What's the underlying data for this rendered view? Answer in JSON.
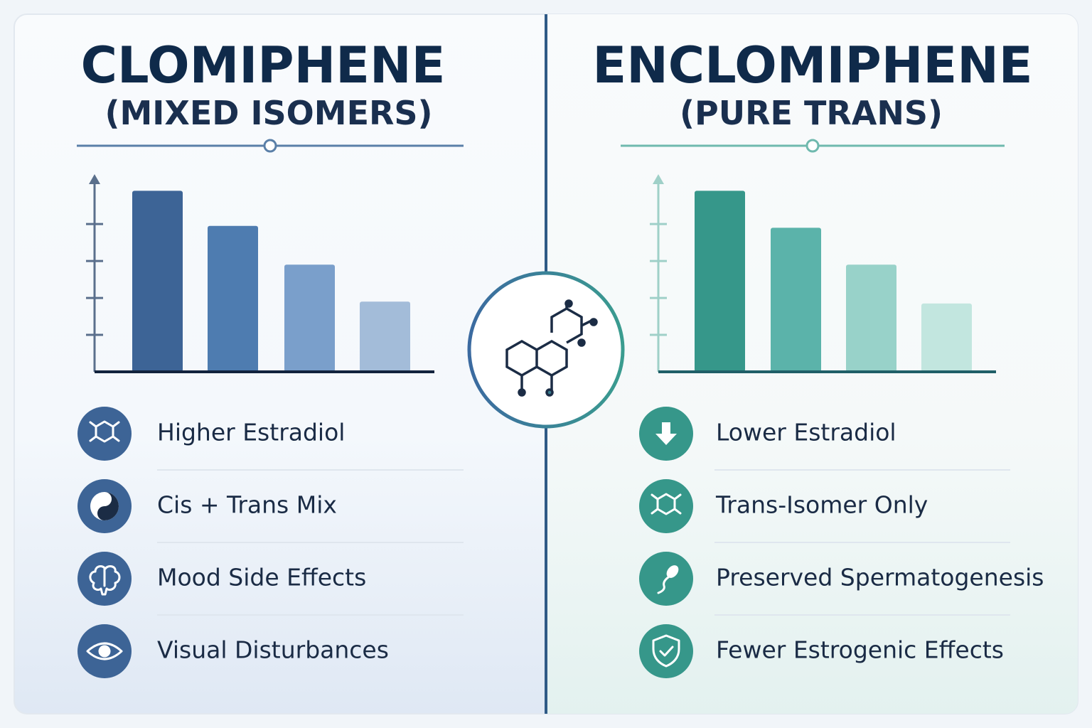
{
  "panels": [
    {
      "title": "CLOMIPHENE",
      "subtitle": "(MIXED ISOMERS)",
      "features": [
        "Higher Estradiol",
        "Cis + Trans Mix",
        "Mood Side Effects",
        "Visual Disturbances"
      ]
    },
    {
      "title": "ENCLOMIPHENE",
      "subtitle": "(PURE TRANS)",
      "features": [
        "Lower Estradiol",
        "Trans-Isomer Only",
        "Preserved Spermatogenesis",
        "Fewer Estrogenic Effects"
      ]
    }
  ],
  "chart_data": [
    {
      "type": "bar",
      "values": [
        4.9,
        3.95,
        2.9,
        1.9
      ],
      "colors": [
        "#3d6496",
        "#4e7cb0",
        "#7a9fcb",
        "#a3bcd9"
      ],
      "axis_color": "#5a6f8c",
      "ylim": [
        0,
        5.35
      ],
      "yticks": [
        1,
        2,
        3,
        4
      ]
    },
    {
      "type": "bar",
      "values": [
        4.9,
        3.9,
        2.9,
        1.85
      ],
      "colors": [
        "#36978a",
        "#5bb3aa",
        "#98d2c9",
        "#c2e6df"
      ],
      "axis_color": "#9fd0c8",
      "ylim": [
        0,
        5.35
      ],
      "yticks": [
        1,
        2,
        3,
        4
      ]
    }
  ]
}
